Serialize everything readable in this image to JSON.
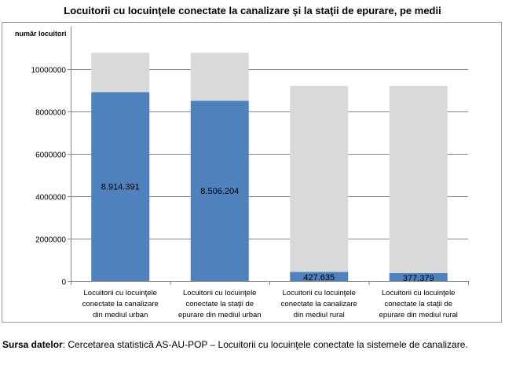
{
  "chart_data": {
    "type": "bar",
    "stacked": true,
    "title": "Locuitorii cu locuinţele conectate la canalizare şi  la staţii de epurare, pe medii",
    "ylabel": "număr locuitori",
    "xlabel": "",
    "ylim": [
      0,
      12000000
    ],
    "yticks": [
      0,
      2000000,
      4000000,
      6000000,
      8000000,
      10000000
    ],
    "ytick_labels": [
      "0",
      "2000000",
      "4000000",
      "6000000",
      "8000000",
      "10000000"
    ],
    "grid": true,
    "legend": "none",
    "categories": [
      [
        "Locuitorii cu locuinţele",
        "conectate la canalizare",
        "din mediul urban"
      ],
      [
        "Locuitorii cu locuinţele",
        "conectate la staţii de",
        "epurare din mediul urban"
      ],
      [
        "Locuitorii cu locuinţele",
        "conectate la canalizare",
        "din mediul rural"
      ],
      [
        "Locuitorii cu locuinţele",
        "conectate la staţii de",
        "epurare din mediul rural"
      ]
    ],
    "series": [
      {
        "color": "#4f81bd",
        "values": [
          8914391,
          8506204,
          427635,
          377379
        ]
      },
      {
        "color": "#d9d9d9",
        "values": [
          1855000,
          2263000,
          8775000,
          8826000
        ]
      }
    ],
    "data_labels": [
      "8.914.391",
      "8.506.204",
      "427.635",
      "377.379"
    ]
  },
  "source": {
    "label": "Sursa datelor",
    "text": ":  Cercetarea statistică AS-AU-POP – Locuitorii cu locuinţele conectate la sistemele de canalizare."
  }
}
